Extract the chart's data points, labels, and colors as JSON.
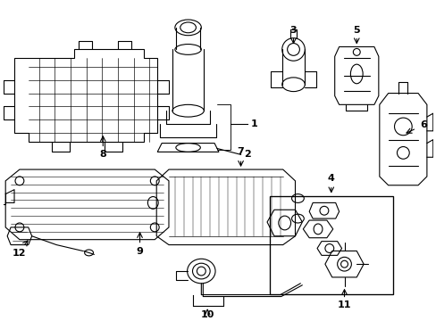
{
  "background_color": "#ffffff",
  "line_color": "#000000",
  "label_color": "#000000",
  "fig_width": 4.89,
  "fig_height": 3.6,
  "dpi": 100,
  "lw": 0.8
}
